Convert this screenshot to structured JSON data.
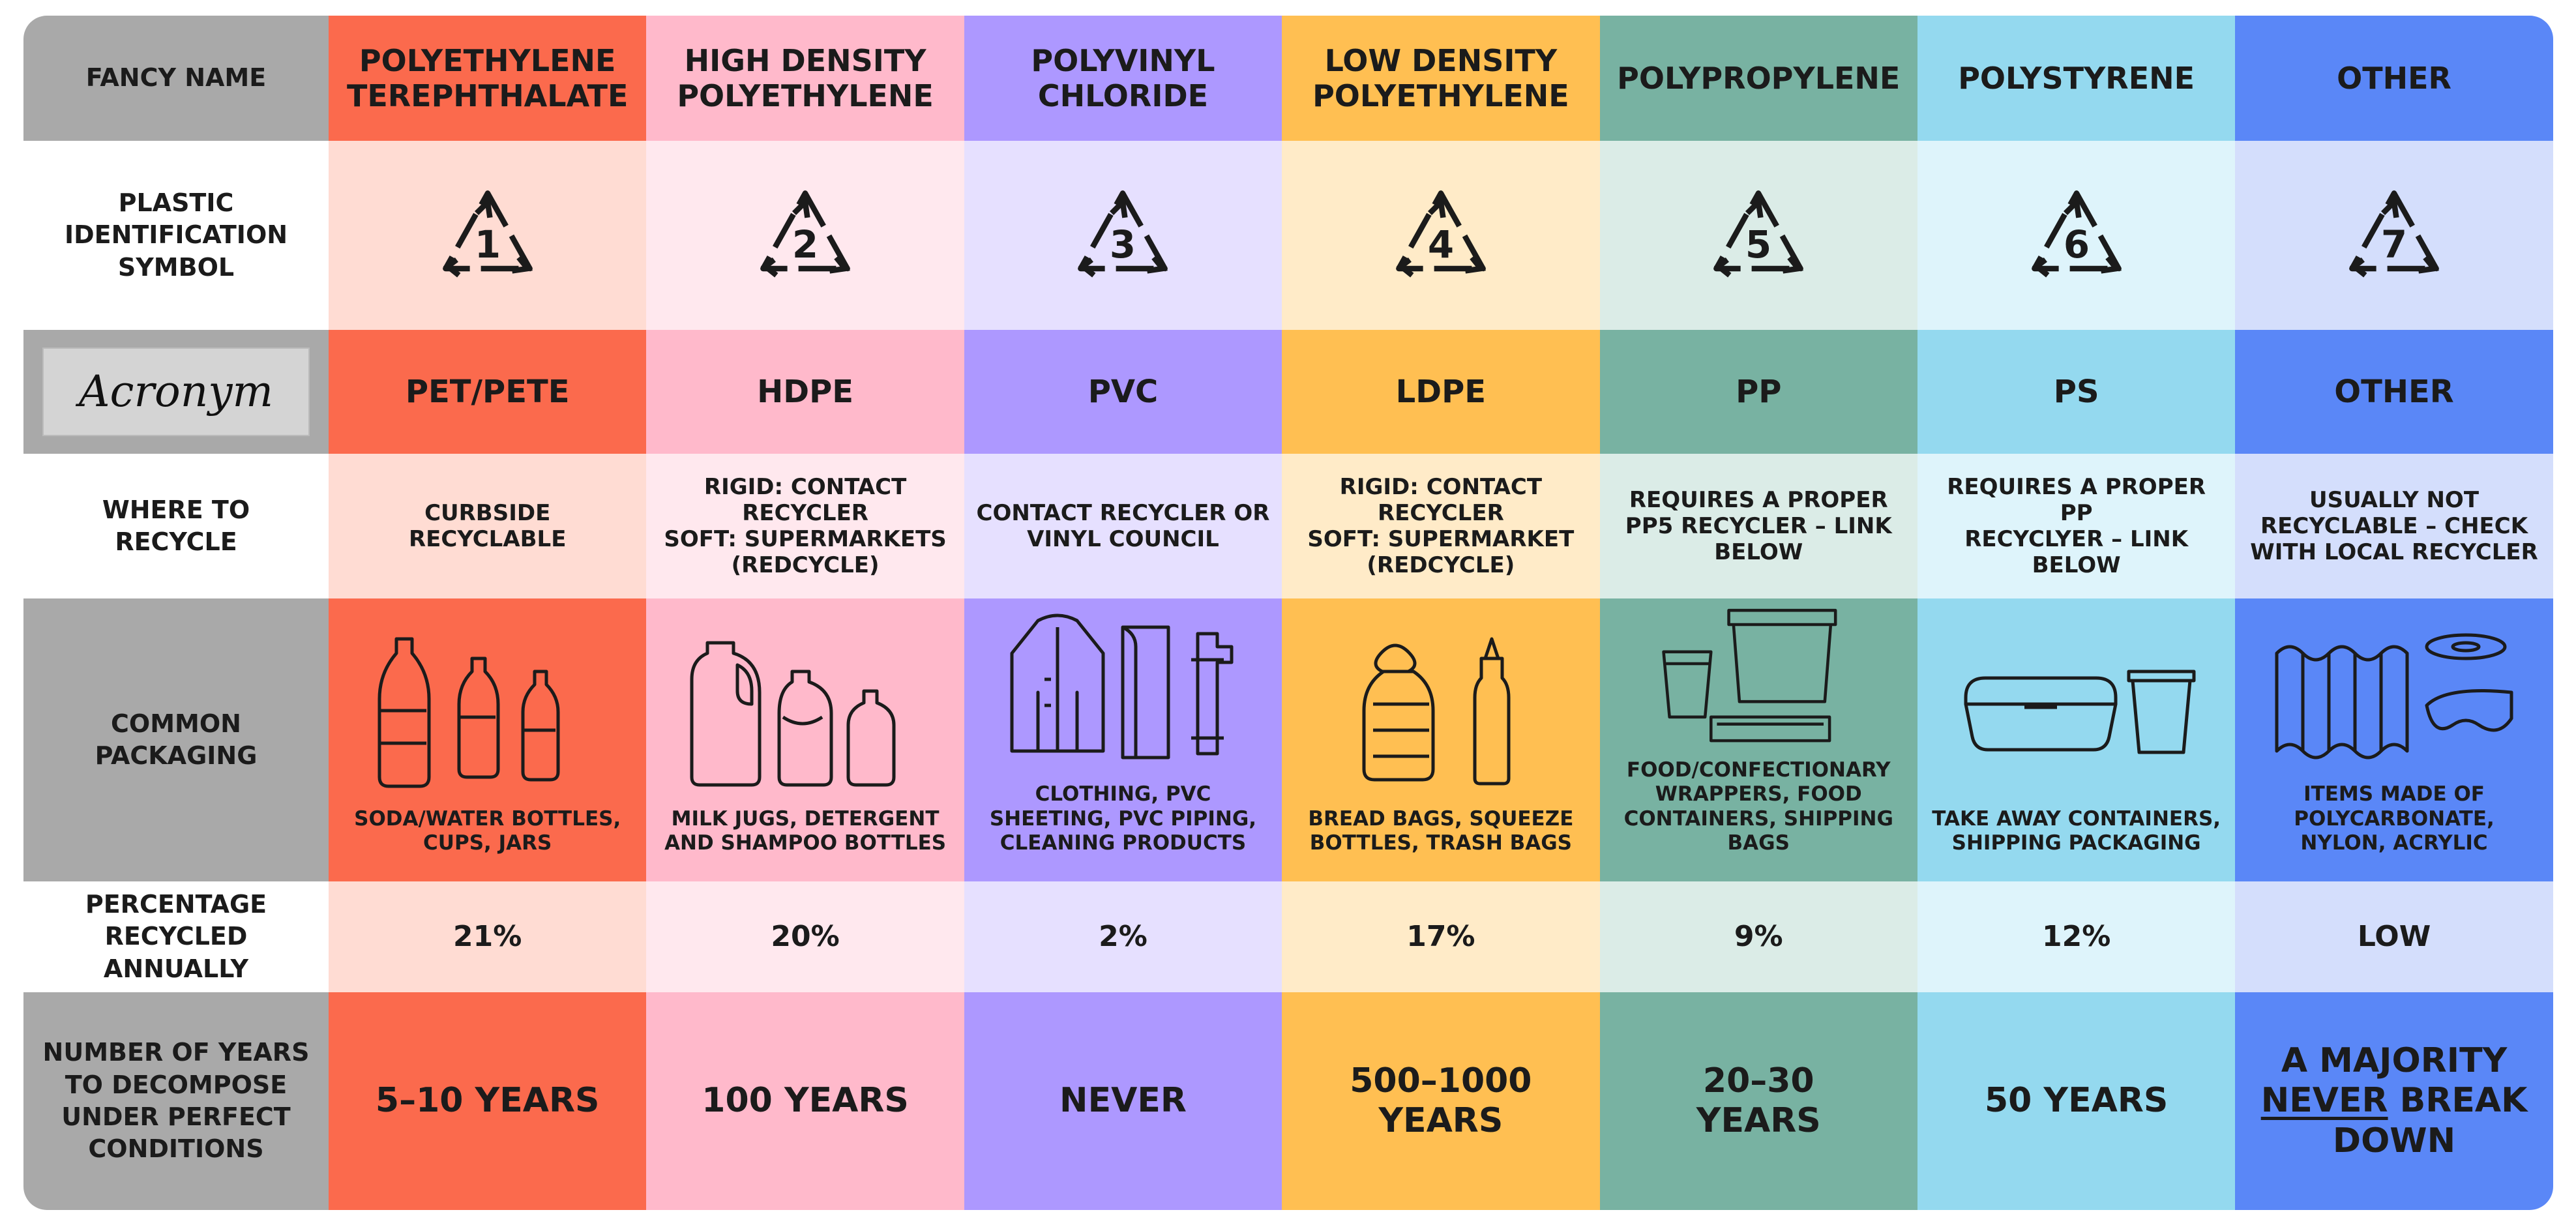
{
  "row_labels": {
    "fancy_name": "FANCY NAME",
    "symbol": "PLASTIC\nIDENTIFICATION\nSYMBOL",
    "acronym": "Acronym",
    "where": "WHERE TO\nRECYCLE",
    "packaging": "COMMON\nPACKAGING",
    "percentage": "PERCENTAGE\nRECYCLED ANNUALLY",
    "years": "NUMBER OF YEARS\nTO DECOMPOSE\nUNDER PERFECT\nCONDITIONS"
  },
  "plastics": [
    {
      "name": "POLYETHYLENE\nTEREPHTHALATE",
      "code": "1",
      "acronym": "PET/PETE",
      "where": "CURBSIDE\nRECYCLABLE",
      "packaging_icon": "bottles-icon",
      "packaging": "SODA/WATER BOTTLES,\nCUPS, JARS",
      "percentage": "21%",
      "years": "5–10 YEARS",
      "dark": "#fb6a4d",
      "light": "#ffdcd3"
    },
    {
      "name": "HIGH DENSITY\nPOLYETHYLENE",
      "code": "2",
      "acronym": "HDPE",
      "where": "RIGID: CONTACT\nRECYCLER\nSOFT: SUPERMARKETS\n(REDcycle)",
      "packaging_icon": "jugs-icon",
      "packaging": "MILK JUGS, DETERGENT\nAND SHAMPOO BOTTLES",
      "percentage": "20%",
      "years": "100 YEARS",
      "dark": "#ffb9cb",
      "light": "#ffe8ee"
    },
    {
      "name": "POLYVINYL\nCHLORIDE",
      "code": "3",
      "acronym": "PVC",
      "where": "CONTACT RECYCLER OR\nVINYL COUNCIL",
      "packaging_icon": "raincoat-pipe-icon",
      "packaging": "CLOTHING, PVC\nSHEETING, PVC PIPING,\nCLEANING PRODUCTS",
      "percentage": "2%",
      "years": "NEVER",
      "dark": "#ad98ff",
      "light": "#e6e0ff"
    },
    {
      "name": "LOW DENSITY\nPOLYETHYLENE",
      "code": "4",
      "acronym": "LDPE",
      "where": "RIGID: CONTACT\nRECYCLER\nSOFT: SUPERMARKET\n(REDCYCLE)",
      "packaging_icon": "bread-bag-icon",
      "packaging": "BREAD BAGS, SQUEEZE\nBOTTLES, TRASH BAGS",
      "percentage": "17%",
      "years": "500–1000\nYEARS",
      "dark": "#ffbf52",
      "light": "#ffebc8"
    },
    {
      "name": "POLYPROPYLENE",
      "code": "5",
      "acronym": "PP",
      "where": "REQUIRES A PROPER\nPP5 RECYCLER – LINK\nBELOW",
      "packaging_icon": "containers-icon",
      "packaging": "FOOD/CONFECTIONARY\nWRAPPERS, FOOD\nCONTAINERS, SHIPPING BAGS",
      "percentage": "9%",
      "years": "20–30\nYEARS",
      "dark": "#78b2a2",
      "light": "#dbece7"
    },
    {
      "name": "POLYSTYRENE",
      "code": "6",
      "acronym": "PS",
      "where": "REQUIRES A PROPER PP\nRECYCLYER – LINK\nBELOW",
      "packaging_icon": "takeaway-box-icon",
      "packaging": "TAKE AWAY CONTAINERS,\nSHIPPING PACKAGING",
      "percentage": "12%",
      "years": "50 YEARS",
      "dark": "#94d9ef",
      "light": "#def4fb"
    },
    {
      "name": "OTHER",
      "code": "7",
      "acronym": "OTHER",
      "where": "USUALLY NOT\nRECYCLABLE – CHECK\nWITH LOCAL RECYCLER",
      "packaging_icon": "sheet-goggles-icon",
      "packaging": "ITEMS MADE OF\nPOLYCARBONATE,\nNYLON, ACRYLIC",
      "percentage": "LOW",
      "years_parts": [
        "A MAJORITY",
        "NEVER",
        " BREAK",
        "DOWN"
      ],
      "dark": "#5a87f7",
      "light": "#d4defc"
    }
  ]
}
